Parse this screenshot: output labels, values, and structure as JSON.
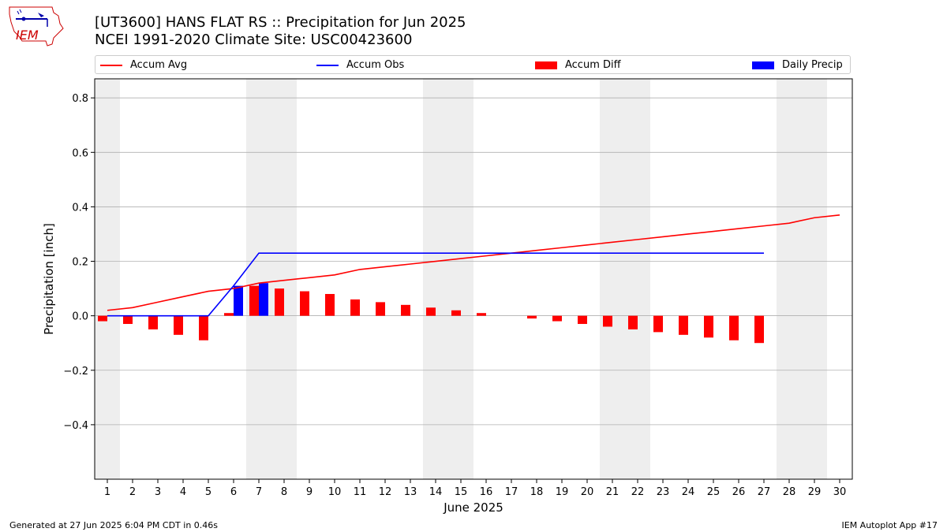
{
  "header": {
    "title_line1": "[UT3600] HANS FLAT RS :: Precipitation for Jun 2025",
    "title_line2": "NCEI 1991-2020 Climate Site: USC00423600",
    "logo_text": "IEM"
  },
  "legend": {
    "items": [
      {
        "label": "Accum Avg",
        "kind": "line",
        "color": "#ff0000"
      },
      {
        "label": "Accum Obs",
        "kind": "line",
        "color": "#0000ff"
      },
      {
        "label": "Accum Diff",
        "kind": "box",
        "color": "#ff0000"
      },
      {
        "label": "Daily Precip",
        "kind": "box",
        "color": "#0000ff"
      }
    ]
  },
  "footer": {
    "left": "Generated at 27 Jun 2025 6:04 PM CDT in 0.46s",
    "right": "IEM Autoplot App #17"
  },
  "chart_data": {
    "type": "bar",
    "title": "[UT3600] HANS FLAT RS :: Precipitation for Jun 2025",
    "subtitle": "NCEI 1991-2020 Climate Site: USC00423600",
    "xlabel": "June 2025",
    "ylabel": "Precipitation [inch]",
    "xlim": [
      0.5,
      30.5
    ],
    "ylim": [
      -0.6,
      0.87
    ],
    "yticks": [
      -0.4,
      -0.2,
      0.0,
      0.2,
      0.4,
      0.6,
      0.8
    ],
    "ytick_labels": [
      "−0.4",
      "−0.2",
      "0.0",
      "0.2",
      "0.4",
      "0.6",
      "0.8"
    ],
    "x": [
      1,
      2,
      3,
      4,
      5,
      6,
      7,
      8,
      9,
      10,
      11,
      12,
      13,
      14,
      15,
      16,
      17,
      18,
      19,
      20,
      21,
      22,
      23,
      24,
      25,
      26,
      27,
      28,
      29,
      30
    ],
    "xtick_labels": [
      "1",
      "2",
      "3",
      "4",
      "5",
      "6",
      "7",
      "8",
      "9",
      "10",
      "11",
      "12",
      "13",
      "14",
      "15",
      "16",
      "17",
      "18",
      "19",
      "20",
      "21",
      "22",
      "23",
      "24",
      "25",
      "26",
      "27",
      "28",
      "29",
      "30"
    ],
    "grid": "y",
    "legend_position": "top",
    "weekend_shading": [
      [
        0.5,
        1.5
      ],
      [
        6.5,
        8.5
      ],
      [
        13.5,
        15.5
      ],
      [
        20.5,
        22.5
      ],
      [
        27.5,
        29.5
      ]
    ],
    "series": [
      {
        "name": "Accum Avg",
        "type": "line",
        "color": "#ff0000",
        "x": [
          1,
          2,
          3,
          4,
          5,
          6,
          7,
          8,
          9,
          10,
          11,
          12,
          13,
          14,
          15,
          16,
          17,
          18,
          19,
          20,
          21,
          22,
          23,
          24,
          25,
          26,
          27,
          28,
          29,
          30
        ],
        "values": [
          0.02,
          0.03,
          0.05,
          0.07,
          0.09,
          0.1,
          0.12,
          0.13,
          0.14,
          0.15,
          0.17,
          0.18,
          0.19,
          0.2,
          0.21,
          0.22,
          0.23,
          0.24,
          0.25,
          0.26,
          0.27,
          0.28,
          0.29,
          0.3,
          0.31,
          0.32,
          0.33,
          0.34,
          0.36,
          0.37
        ]
      },
      {
        "name": "Accum Obs",
        "type": "line",
        "color": "#0000ff",
        "x": [
          1,
          2,
          3,
          4,
          5,
          6,
          7,
          8,
          9,
          10,
          11,
          12,
          13,
          14,
          15,
          16,
          17,
          18,
          19,
          20,
          21,
          22,
          23,
          24,
          25,
          26,
          27
        ],
        "values": [
          0,
          0,
          0,
          0,
          0,
          0.11,
          0.23,
          0.23,
          0.23,
          0.23,
          0.23,
          0.23,
          0.23,
          0.23,
          0.23,
          0.23,
          0.23,
          0.23,
          0.23,
          0.23,
          0.23,
          0.23,
          0.23,
          0.23,
          0.23,
          0.23,
          0.23
        ]
      },
      {
        "name": "Accum Diff",
        "type": "bar",
        "color": "#ff0000",
        "x": [
          1,
          2,
          3,
          4,
          5,
          6,
          7,
          8,
          9,
          10,
          11,
          12,
          13,
          14,
          15,
          16,
          17,
          18,
          19,
          20,
          21,
          22,
          23,
          24,
          25,
          26,
          27
        ],
        "values": [
          -0.02,
          -0.03,
          -0.05,
          -0.07,
          -0.09,
          0.01,
          0.11,
          0.1,
          0.09,
          0.08,
          0.06,
          0.05,
          0.04,
          0.03,
          0.02,
          0.01,
          0.0,
          -0.01,
          -0.02,
          -0.03,
          -0.04,
          -0.05,
          -0.06,
          -0.07,
          -0.08,
          -0.09,
          -0.1
        ]
      },
      {
        "name": "Daily Precip",
        "type": "bar",
        "color": "#0000ff",
        "x": [
          6,
          7
        ],
        "values": [
          0.11,
          0.12
        ]
      }
    ]
  }
}
